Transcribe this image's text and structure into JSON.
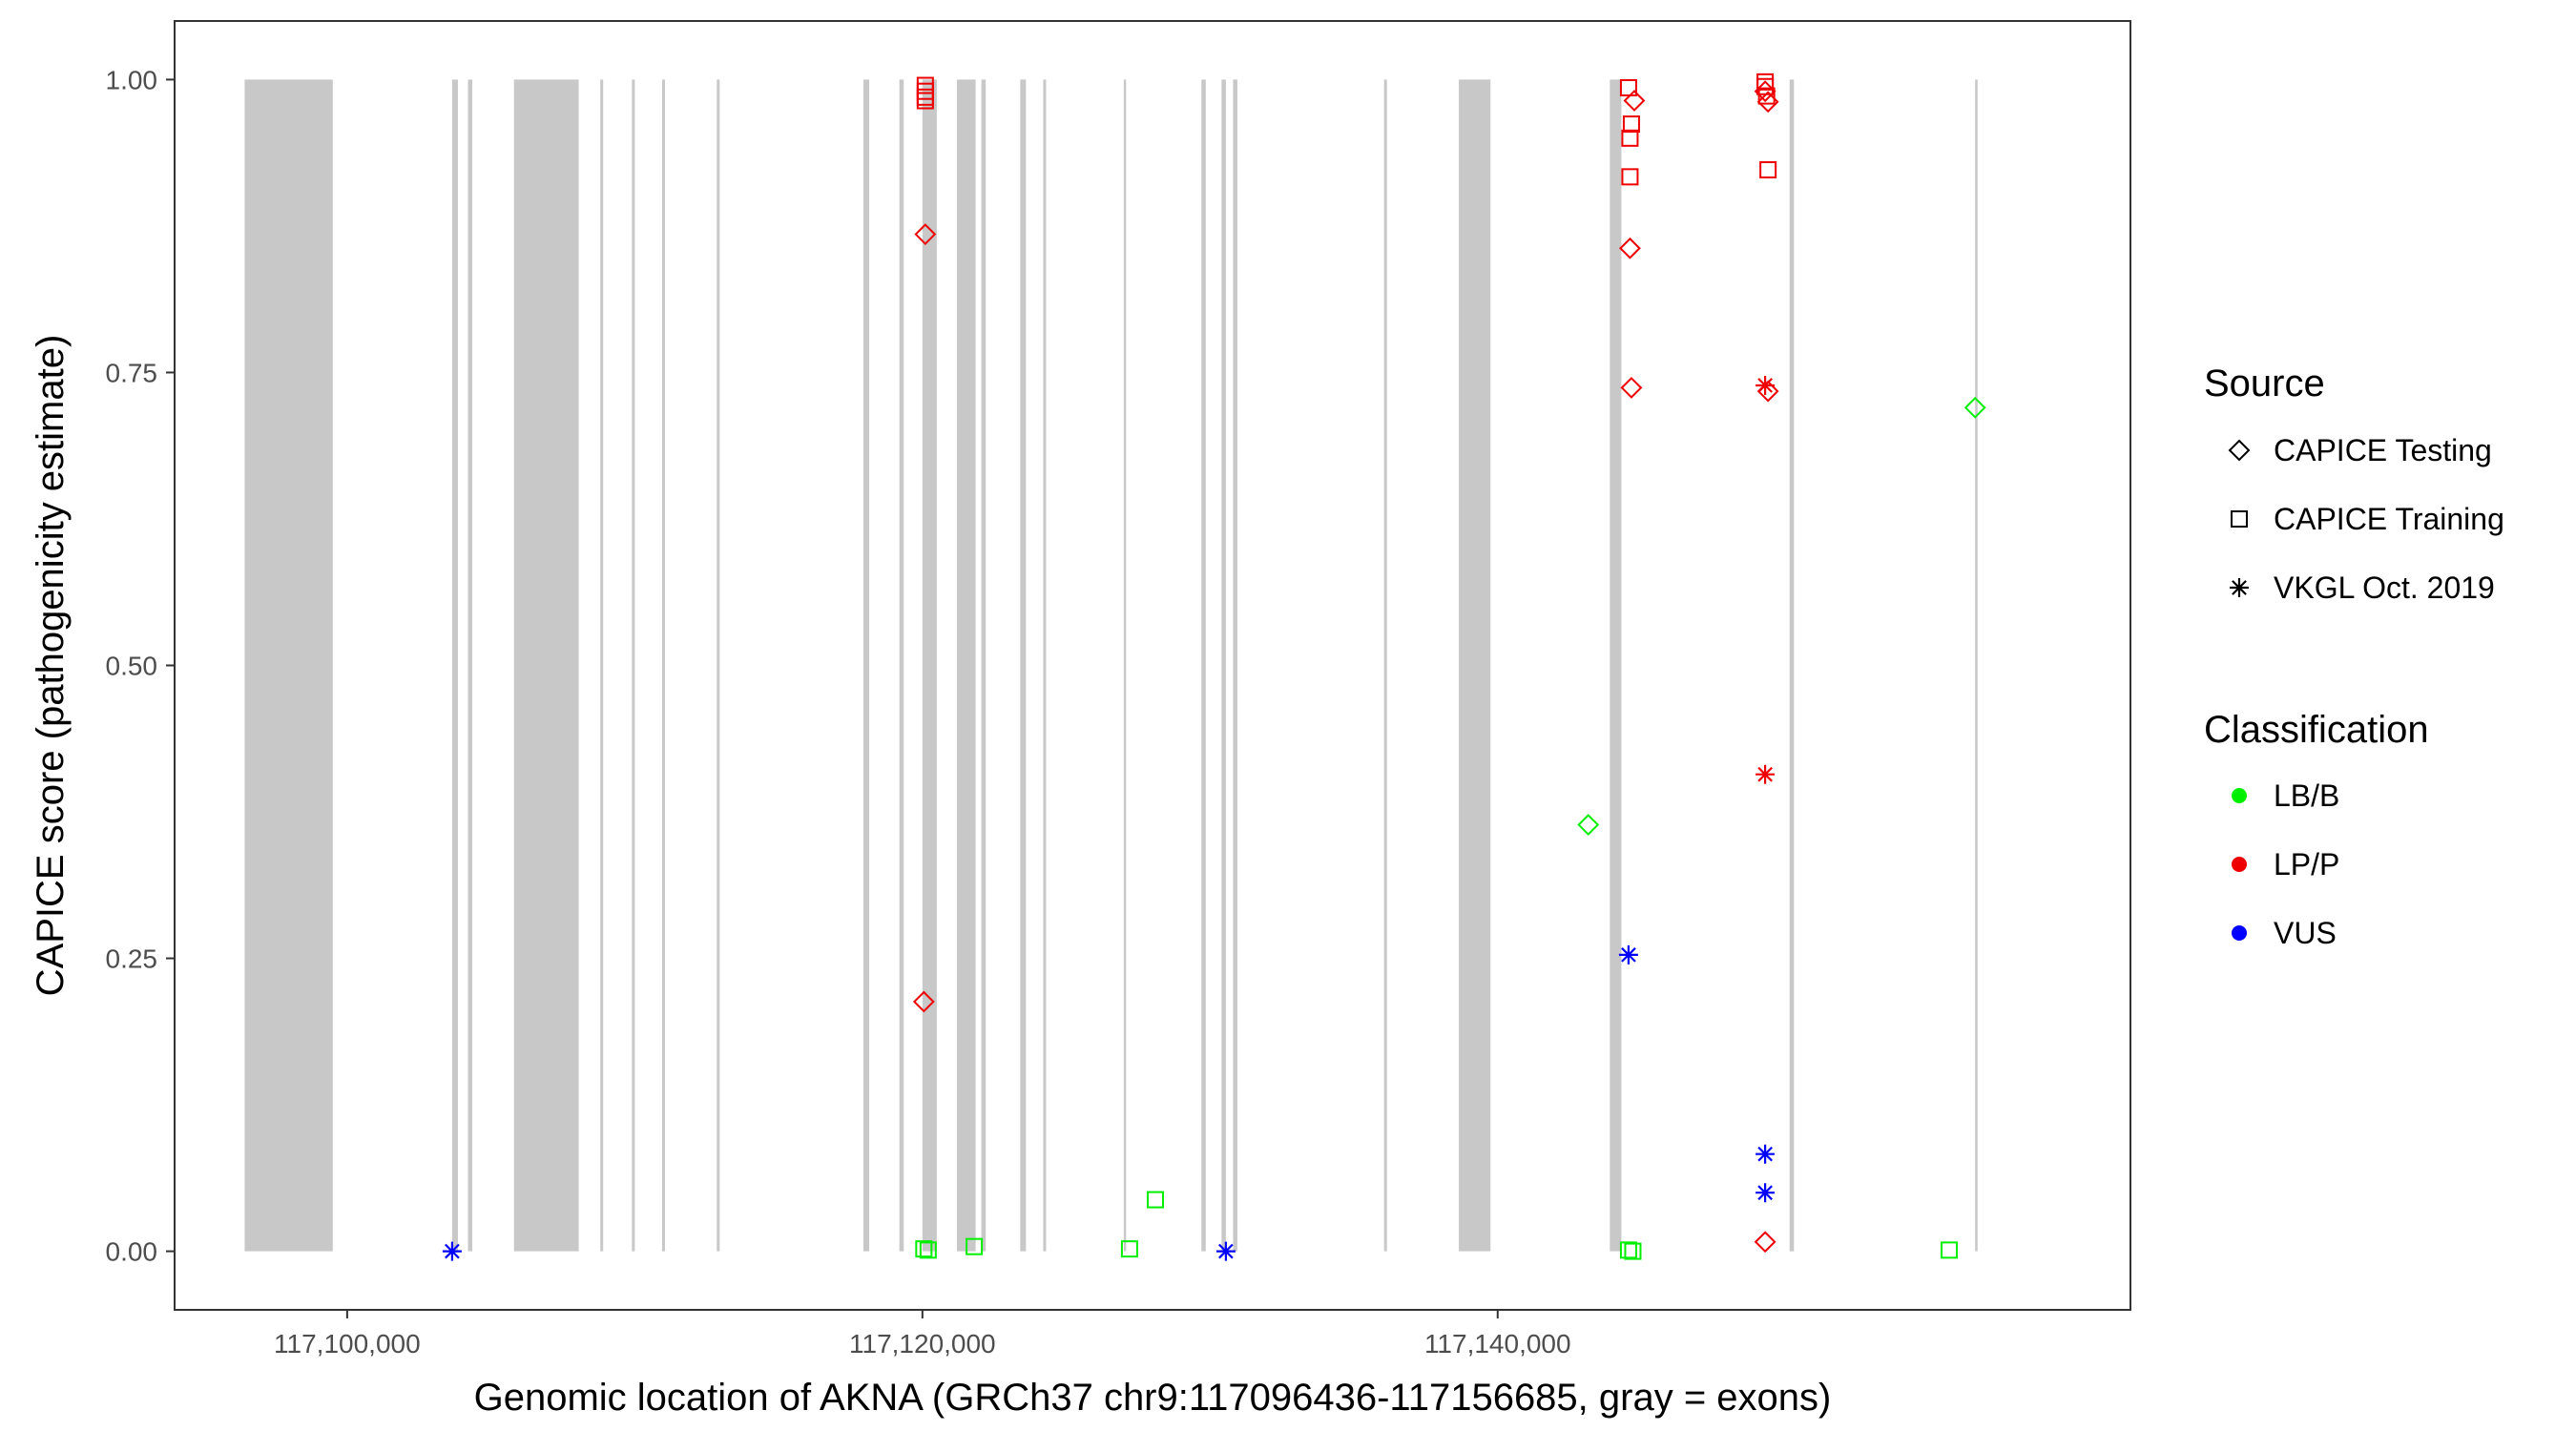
{
  "chart_data": {
    "type": "scatter",
    "xlabel": "Genomic location of AKNA (GRCh37 chr9:117096436-117156685, gray = exons)",
    "ylabel": "CAPICE score (pathogenicity estimate)",
    "xlim": [
      117094000,
      117162000
    ],
    "ylim": [
      -0.05,
      1.05
    ],
    "x_ticks": [
      117100000,
      117120000,
      117140000
    ],
    "x_tick_labels": [
      "117,100,000",
      "117,120,000",
      "117,140,000"
    ],
    "y_ticks": [
      0,
      0.25,
      0.5,
      0.75,
      1
    ],
    "y_tick_labels": [
      "0.00",
      "0.25",
      "0.50",
      "0.75",
      "1.00"
    ],
    "grid": false,
    "exon_color": "#c8c8c8",
    "exons": [
      [
        117096436,
        117099500
      ],
      [
        117103650,
        117103850
      ],
      [
        117104200,
        117104350
      ],
      [
        117105800,
        117108050
      ],
      [
        117108800,
        117108900
      ],
      [
        117109900,
        117110000
      ],
      [
        117110950,
        117111050
      ],
      [
        117112850,
        117112950
      ],
      [
        117117950,
        117118150
      ],
      [
        117119200,
        117119350
      ],
      [
        117120000,
        117120500
      ],
      [
        117121200,
        117121850
      ],
      [
        117122050,
        117122200
      ],
      [
        117123400,
        117123600
      ],
      [
        117124200,
        117124300
      ],
      [
        117127000,
        117127080
      ],
      [
        117129700,
        117129850
      ],
      [
        117130400,
        117130550
      ],
      [
        117130800,
        117130950
      ],
      [
        117136050,
        117136150
      ],
      [
        117138650,
        117139750
      ],
      [
        117143900,
        117144300
      ],
      [
        117150150,
        117150300
      ],
      [
        117156600,
        117156685
      ]
    ],
    "legend": {
      "position": "right",
      "source_title": "Source",
      "source_items": [
        {
          "label": "CAPICE Testing",
          "shape": "diamond"
        },
        {
          "label": "CAPICE Training",
          "shape": "square"
        },
        {
          "label": "VKGL Oct. 2019",
          "shape": "star"
        }
      ],
      "class_title": "Classification",
      "class_items": [
        {
          "label": "LB/B",
          "color": "#00ee00"
        },
        {
          "label": "LP/P",
          "color": "#ee0000"
        },
        {
          "label": "VUS",
          "color": "#0000ff"
        }
      ]
    },
    "points": [
      {
        "x": 117103650,
        "y": 0.0,
        "source": "VKGL Oct. 2019",
        "class": "VUS"
      },
      {
        "x": 117120100,
        "y": 0.995,
        "source": "CAPICE Training",
        "class": "LP/P"
      },
      {
        "x": 117120100,
        "y": 0.99,
        "source": "CAPICE Training",
        "class": "LP/P"
      },
      {
        "x": 117120100,
        "y": 0.985,
        "source": "CAPICE Training",
        "class": "LP/P"
      },
      {
        "x": 117120100,
        "y": 0.982,
        "source": "CAPICE Training",
        "class": "LP/P"
      },
      {
        "x": 117120100,
        "y": 0.868,
        "source": "CAPICE Testing",
        "class": "LP/P"
      },
      {
        "x": 117120050,
        "y": 0.213,
        "source": "CAPICE Testing",
        "class": "LP/P"
      },
      {
        "x": 117120050,
        "y": 0.002,
        "source": "CAPICE Training",
        "class": "LB/B"
      },
      {
        "x": 117120200,
        "y": 0.001,
        "source": "CAPICE Training",
        "class": "LB/B"
      },
      {
        "x": 117121800,
        "y": 0.004,
        "source": "CAPICE Training",
        "class": "LB/B"
      },
      {
        "x": 117127200,
        "y": 0.002,
        "source": "CAPICE Training",
        "class": "LB/B"
      },
      {
        "x": 117128100,
        "y": 0.044,
        "source": "CAPICE Training",
        "class": "LB/B"
      },
      {
        "x": 117130550,
        "y": 0.0,
        "source": "VKGL Oct. 2019",
        "class": "VUS"
      },
      {
        "x": 117143150,
        "y": 0.364,
        "source": "CAPICE Testing",
        "class": "LB/B"
      },
      {
        "x": 117144550,
        "y": 0.993,
        "source": "CAPICE Training",
        "class": "LP/P"
      },
      {
        "x": 117144750,
        "y": 0.982,
        "source": "CAPICE Testing",
        "class": "LP/P"
      },
      {
        "x": 117144650,
        "y": 0.962,
        "source": "CAPICE Training",
        "class": "LP/P"
      },
      {
        "x": 117144600,
        "y": 0.95,
        "source": "CAPICE Training",
        "class": "LP/P"
      },
      {
        "x": 117144600,
        "y": 0.917,
        "source": "CAPICE Training",
        "class": "LP/P"
      },
      {
        "x": 117144600,
        "y": 0.856,
        "source": "CAPICE Testing",
        "class": "LP/P"
      },
      {
        "x": 117144650,
        "y": 0.737,
        "source": "CAPICE Testing",
        "class": "LP/P"
      },
      {
        "x": 117144550,
        "y": 0.253,
        "source": "VKGL Oct. 2019",
        "class": "VUS"
      },
      {
        "x": 117144550,
        "y": 0.001,
        "source": "CAPICE Training",
        "class": "LB/B"
      },
      {
        "x": 117144700,
        "y": 0.0,
        "source": "CAPICE Training",
        "class": "LB/B"
      },
      {
        "x": 117149300,
        "y": 0.998,
        "source": "CAPICE Training",
        "class": "LP/P"
      },
      {
        "x": 117149300,
        "y": 0.994,
        "source": "CAPICE Training",
        "class": "LP/P"
      },
      {
        "x": 117149300,
        "y": 0.99,
        "source": "CAPICE Testing",
        "class": "LP/P"
      },
      {
        "x": 117149350,
        "y": 0.986,
        "source": "CAPICE Training",
        "class": "LP/P"
      },
      {
        "x": 117149400,
        "y": 0.981,
        "source": "CAPICE Testing",
        "class": "LP/P"
      },
      {
        "x": 117149400,
        "y": 0.923,
        "source": "CAPICE Training",
        "class": "LP/P"
      },
      {
        "x": 117149300,
        "y": 0.739,
        "source": "VKGL Oct. 2019",
        "class": "LP/P"
      },
      {
        "x": 117149400,
        "y": 0.734,
        "source": "CAPICE Testing",
        "class": "LP/P"
      },
      {
        "x": 117149300,
        "y": 0.407,
        "source": "VKGL Oct. 2019",
        "class": "LP/P"
      },
      {
        "x": 117149300,
        "y": 0.083,
        "source": "VKGL Oct. 2019",
        "class": "VUS"
      },
      {
        "x": 117149300,
        "y": 0.05,
        "source": "VKGL Oct. 2019",
        "class": "VUS"
      },
      {
        "x": 117149300,
        "y": 0.008,
        "source": "CAPICE Testing",
        "class": "LP/P"
      },
      {
        "x": 117155700,
        "y": 0.001,
        "source": "CAPICE Training",
        "class": "LB/B"
      },
      {
        "x": 117156600,
        "y": 0.72,
        "source": "CAPICE Testing",
        "class": "LB/B"
      }
    ]
  }
}
